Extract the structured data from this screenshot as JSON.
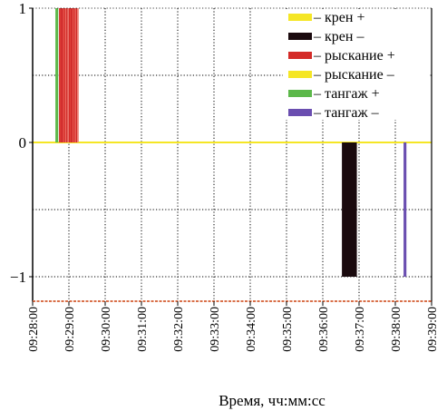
{
  "chart_data": {
    "type": "bar",
    "title": "",
    "xlabel": "Время, чч:мм:сс",
    "ylabel": "",
    "x_ticks": [
      "09:28:00",
      "09:29:00",
      "09:30:00",
      "09:31:00",
      "09:32:00",
      "09:33:00",
      "09:34:00",
      "09:35:00",
      "09:36:00",
      "09:37:00",
      "09:38:00",
      "09:39:00"
    ],
    "xlim": [
      "09:28:00",
      "09:39:00"
    ],
    "y_ticks": [
      "1",
      "0",
      "−1"
    ],
    "ylim": [
      -1.15,
      1
    ],
    "grid": true,
    "legend_position": "top-right",
    "series": [
      {
        "name": "– крен +",
        "color": "#f5e625",
        "values": []
      },
      {
        "name": "– крен –",
        "color": "#1a0a0e",
        "values": [
          {
            "x": "09:36:33",
            "y": -1
          },
          {
            "x": "09:36:35",
            "y": -1
          },
          {
            "x": "09:36:37",
            "y": -1
          },
          {
            "x": "09:36:39",
            "y": -1
          },
          {
            "x": "09:36:41",
            "y": -1
          },
          {
            "x": "09:36:43",
            "y": -1
          },
          {
            "x": "09:36:45",
            "y": -1
          },
          {
            "x": "09:36:47",
            "y": -1
          },
          {
            "x": "09:36:49",
            "y": -1
          },
          {
            "x": "09:36:51",
            "y": -1
          },
          {
            "x": "09:36:53",
            "y": -1
          },
          {
            "x": "09:36:55",
            "y": -1
          }
        ]
      },
      {
        "name": "– рыскание +",
        "color": "#d42b28",
        "values": [
          {
            "x": "09:28:45",
            "y": 1
          },
          {
            "x": "09:28:47",
            "y": 1
          },
          {
            "x": "09:28:49",
            "y": 1
          },
          {
            "x": "09:28:51",
            "y": 1
          },
          {
            "x": "09:28:53",
            "y": 1
          },
          {
            "x": "09:28:55",
            "y": 1
          },
          {
            "x": "09:28:57",
            "y": 1
          },
          {
            "x": "09:28:59",
            "y": 1
          },
          {
            "x": "09:29:01",
            "y": 1
          },
          {
            "x": "09:29:03",
            "y": 1
          },
          {
            "x": "09:29:05",
            "y": 1
          },
          {
            "x": "09:29:07",
            "y": 1
          },
          {
            "x": "09:29:09",
            "y": 1
          },
          {
            "x": "09:29:11",
            "y": 1
          },
          {
            "x": "09:29:13",
            "y": 1
          },
          {
            "x": "09:29:15",
            "y": 1
          }
        ]
      },
      {
        "name": "– рыскание –",
        "color": "#f5e625",
        "values": []
      },
      {
        "name": "– тангаж +",
        "color": "#5cb84a",
        "values": [
          {
            "x": "09:28:39",
            "y": 1
          },
          {
            "x": "09:28:41",
            "y": 1
          }
        ]
      },
      {
        "name": "– тангаж –",
        "color": "#6a4eb0",
        "values": [
          {
            "x": "09:38:15",
            "y": -1
          },
          {
            "x": "09:38:17",
            "y": -1
          }
        ]
      }
    ],
    "colors": {
      "zero_line": "#f5e625",
      "bottom_line": "#d9704a",
      "grid": "#000000"
    }
  }
}
